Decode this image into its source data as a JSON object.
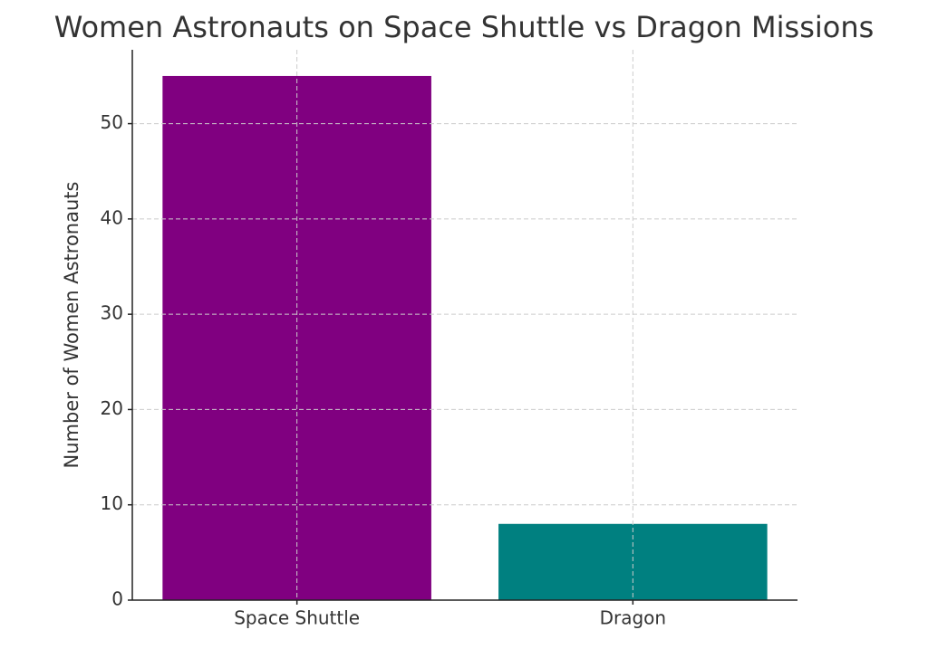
{
  "chart_data": {
    "type": "bar",
    "title": "Women Astronauts on Space Shuttle vs Dragon Missions",
    "y_label": "Number of Women Astronauts",
    "categories": [
      "Space Shuttle",
      "Dragon"
    ],
    "values": [
      55,
      8
    ],
    "colors": [
      "#800080",
      "#008080"
    ],
    "ylim": [
      0,
      57.75
    ],
    "yticks": [
      0,
      10,
      20,
      30,
      40,
      50
    ],
    "grid": true
  }
}
